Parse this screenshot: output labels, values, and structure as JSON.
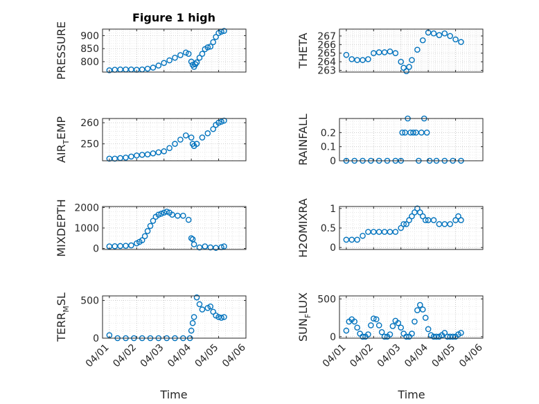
{
  "figure": {
    "title": "Figure 1 high",
    "xlabel": "Time",
    "marker_color": "#0072BD",
    "x_ticks": [
      "04/01",
      "04/02",
      "04/03",
      "04/04",
      "04/05",
      "04/06"
    ],
    "grid": "on (major and minor, dotted)",
    "marker": "open circle"
  },
  "chart_data": [
    {
      "type": "scatter",
      "ylabel": "PRESSURE",
      "ylim": [
        760,
        925
      ],
      "yticks": [
        "800",
        "850",
        "900"
      ],
      "yticks_values": [
        800,
        850,
        900
      ],
      "x": [
        0,
        0.2,
        0.4,
        0.6,
        0.8,
        1.0,
        1.2,
        1.4,
        1.6,
        1.8,
        2.0,
        2.2,
        2.4,
        2.6,
        2.8,
        2.9,
        3.0,
        3.05,
        3.1,
        3.15,
        3.2,
        3.3,
        3.4,
        3.5,
        3.6,
        3.7,
        3.8,
        3.9,
        4.0,
        4.1,
        4.2
      ],
      "y": [
        767,
        769,
        770,
        770,
        770,
        769,
        770,
        773,
        777,
        785,
        795,
        805,
        815,
        825,
        835,
        830,
        800,
        788,
        780,
        790,
        797,
        815,
        830,
        848,
        855,
        858,
        875,
        895,
        910,
        915,
        918
      ]
    },
    {
      "type": "scatter",
      "ylabel": "THETA",
      "ylim": [
        262.8,
        267.8
      ],
      "yticks": [
        "263",
        "264",
        "265",
        "266",
        "267"
      ],
      "yticks_values": [
        263,
        264,
        265,
        266,
        267
      ],
      "x": [
        0,
        0.2,
        0.4,
        0.6,
        0.8,
        1.0,
        1.2,
        1.4,
        1.6,
        1.8,
        2.0,
        2.1,
        2.2,
        2.3,
        2.4,
        2.6,
        2.8,
        3.0,
        3.2,
        3.4,
        3.6,
        3.8,
        4.0,
        4.2
      ],
      "y": [
        264.8,
        264.3,
        264.2,
        264.2,
        264.3,
        265.0,
        265.1,
        265.1,
        265.2,
        265.0,
        264.0,
        263.3,
        262.9,
        263.4,
        264.2,
        265.4,
        266.5,
        267.4,
        267.3,
        267.1,
        267.3,
        267.0,
        266.6,
        266.3
      ]
    },
    {
      "type": "scatter",
      "ylabel": "AIR_TEMP",
      "ylim": [
        242,
        262
      ],
      "yticks": [
        "250",
        "260"
      ],
      "yticks_values": [
        250,
        260
      ],
      "x": [
        0,
        0.2,
        0.4,
        0.6,
        0.8,
        1.0,
        1.2,
        1.4,
        1.6,
        1.8,
        2.0,
        2.2,
        2.4,
        2.6,
        2.8,
        3.0,
        3.05,
        3.1,
        3.2,
        3.4,
        3.6,
        3.8,
        3.9,
        4.0,
        4.1,
        4.2
      ],
      "y": [
        243,
        243,
        243.3,
        243.5,
        244,
        244.5,
        244.8,
        245,
        245.5,
        246,
        246.5,
        248,
        250,
        252,
        254,
        253,
        250,
        249,
        250,
        253,
        255,
        257,
        259,
        260,
        260.5,
        261
      ]
    },
    {
      "type": "scatter",
      "ylabel": "RAINFALL",
      "ylim": [
        0,
        0.3
      ],
      "yticks": [
        "0",
        "0.1",
        "0.2"
      ],
      "yticks_values": [
        0,
        0.1,
        0.2
      ],
      "x": [
        0,
        0.3,
        0.6,
        0.9,
        1.2,
        1.5,
        1.8,
        2.0,
        2.05,
        2.15,
        2.25,
        2.35,
        2.45,
        2.55,
        2.65,
        2.75,
        2.85,
        2.95,
        3.05,
        3.3,
        3.6,
        3.9,
        4.2
      ],
      "y": [
        0,
        0,
        0,
        0,
        0,
        0,
        0,
        0,
        0.2,
        0.2,
        0.3,
        0.2,
        0.2,
        0.2,
        0,
        0.2,
        0.3,
        0.2,
        0,
        0,
        0,
        0,
        0
      ]
    },
    {
      "type": "scatter",
      "ylabel": "MIXDEPTH",
      "ylim": [
        -50,
        2050
      ],
      "yticks": [
        "0",
        "1000",
        "2000"
      ],
      "yticks_values": [
        0,
        1000,
        2000
      ],
      "x": [
        0,
        0.2,
        0.4,
        0.6,
        0.8,
        1.0,
        1.1,
        1.2,
        1.3,
        1.4,
        1.5,
        1.6,
        1.7,
        1.8,
        1.9,
        2.0,
        2.1,
        2.2,
        2.3,
        2.5,
        2.7,
        2.9,
        3.0,
        3.05,
        3.1,
        3.3,
        3.5,
        3.7,
        3.9,
        4.1,
        4.2
      ],
      "y": [
        100,
        110,
        120,
        130,
        150,
        250,
        320,
        400,
        600,
        850,
        1100,
        1350,
        1550,
        1650,
        1700,
        1750,
        1800,
        1750,
        1650,
        1600,
        1600,
        1400,
        500,
        450,
        200,
        50,
        100,
        50,
        30,
        60,
        100
      ]
    },
    {
      "type": "scatter",
      "ylabel": "H2OMIXRA",
      "ylim": [
        -0.05,
        1.05
      ],
      "yticks": [
        "0",
        "0.5",
        "1"
      ],
      "yticks_values": [
        0,
        0.5,
        1
      ],
      "x": [
        0,
        0.2,
        0.4,
        0.6,
        0.8,
        1.0,
        1.2,
        1.4,
        1.6,
        1.8,
        2.0,
        2.1,
        2.2,
        2.3,
        2.4,
        2.5,
        2.6,
        2.7,
        2.8,
        2.9,
        3.0,
        3.2,
        3.4,
        3.6,
        3.8,
        4.0,
        4.1,
        4.2
      ],
      "y": [
        0.2,
        0.2,
        0.2,
        0.3,
        0.4,
        0.4,
        0.4,
        0.4,
        0.4,
        0.4,
        0.5,
        0.6,
        0.6,
        0.7,
        0.8,
        0.9,
        1.0,
        0.9,
        0.8,
        0.7,
        0.7,
        0.7,
        0.6,
        0.6,
        0.6,
        0.7,
        0.8,
        0.7
      ]
    },
    {
      "type": "scatter",
      "ylabel": "TERR_MSL",
      "ylim": [
        0,
        560
      ],
      "yticks": [
        "0",
        "500"
      ],
      "yticks_values": [
        0,
        500
      ],
      "x": [
        0,
        0.3,
        0.6,
        0.9,
        1.2,
        1.5,
        1.8,
        2.1,
        2.4,
        2.7,
        2.95,
        3.0,
        3.05,
        3.1,
        3.2,
        3.3,
        3.4,
        3.6,
        3.7,
        3.8,
        3.9,
        4.0,
        4.1,
        4.2
      ],
      "y": [
        40,
        0,
        0,
        0,
        0,
        0,
        0,
        0,
        0,
        0,
        0,
        100,
        200,
        280,
        540,
        450,
        380,
        400,
        420,
        350,
        300,
        280,
        270,
        280
      ]
    },
    {
      "type": "scatter",
      "ylabel": "SUN_FLUX",
      "ylim": [
        -20,
        540
      ],
      "yticks": [
        "0",
        "500"
      ],
      "yticks_values": [
        0,
        500
      ],
      "x": [
        0,
        0.1,
        0.2,
        0.3,
        0.4,
        0.5,
        0.6,
        0.7,
        0.8,
        0.9,
        1.0,
        1.1,
        1.2,
        1.3,
        1.4,
        1.5,
        1.6,
        1.7,
        1.8,
        1.9,
        2.0,
        2.1,
        2.2,
        2.3,
        2.4,
        2.5,
        2.6,
        2.7,
        2.8,
        2.9,
        3.0,
        3.1,
        3.2,
        3.3,
        3.4,
        3.5,
        3.6,
        3.7,
        3.8,
        3.9,
        4.0,
        4.1,
        4.2
      ],
      "y": [
        80,
        200,
        230,
        200,
        120,
        40,
        0,
        0,
        30,
        150,
        240,
        230,
        150,
        60,
        0,
        0,
        30,
        140,
        210,
        180,
        120,
        40,
        0,
        0,
        40,
        200,
        350,
        420,
        360,
        250,
        100,
        20,
        0,
        0,
        0,
        20,
        50,
        0,
        0,
        0,
        0,
        30,
        50
      ]
    }
  ]
}
